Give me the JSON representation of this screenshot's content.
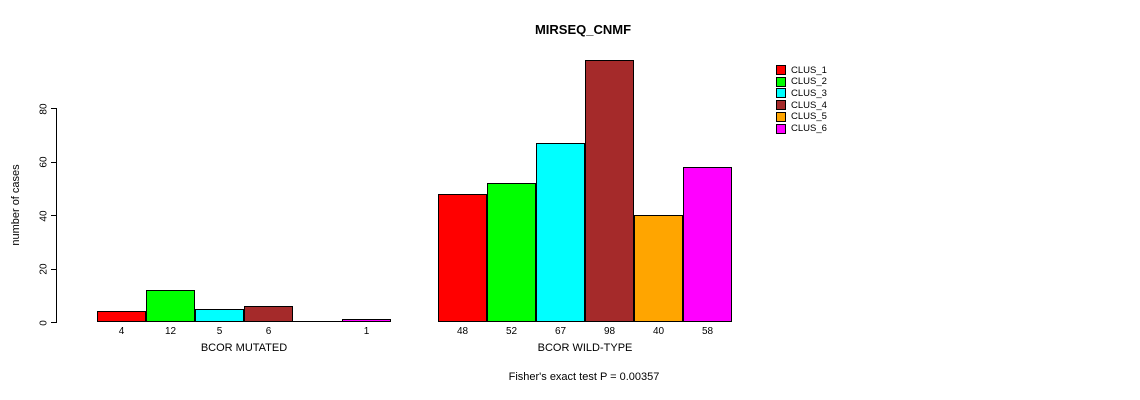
{
  "chart_data": {
    "type": "bar",
    "title": "MIRSEQ_CNMF",
    "xlabel": "",
    "ylabel": "number of cases",
    "yticks": [
      0,
      20,
      40,
      60,
      80
    ],
    "ylim": [
      0,
      98
    ],
    "grid": false,
    "legend_position": "right-outside",
    "groups": [
      {
        "label": "BCOR MUTATED",
        "values": [
          4,
          12,
          5,
          6,
          0,
          1
        ]
      },
      {
        "label": "BCOR WILD-TYPE",
        "values": [
          48,
          52,
          67,
          98,
          40,
          58
        ]
      }
    ],
    "series_colors": [
      "#ff0000",
      "#00ff00",
      "#00ffff",
      "#a52a2a",
      "#ffa500",
      "#ff00ff"
    ],
    "legend": [
      {
        "label": "CLUS_1",
        "color": "#ff0000"
      },
      {
        "label": "CLUS_2",
        "color": "#00ff00"
      },
      {
        "label": "CLUS_3",
        "color": "#00ffff"
      },
      {
        "label": "CLUS_4",
        "color": "#a52a2a"
      },
      {
        "label": "CLUS_5",
        "color": "#ffa500"
      },
      {
        "label": "CLUS_6",
        "color": "#ff00ff"
      }
    ],
    "annotation": "Fisher's exact test P = 0.00357",
    "axis_color": "#000000",
    "background_color": "#ffffff"
  }
}
